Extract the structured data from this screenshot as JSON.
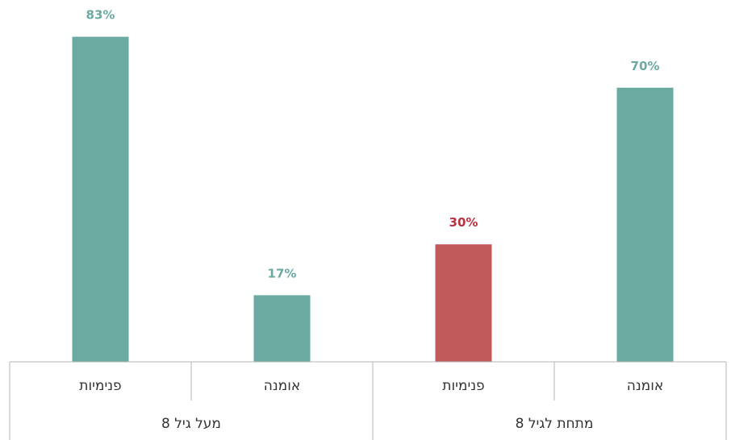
{
  "chart_data": {
    "type": "bar",
    "title": "",
    "xlabel": "",
    "ylabel": "",
    "ylim": [
      0,
      100
    ],
    "value_suffix": "%",
    "categories": [
      "אומנה",
      "פנימיות",
      "אומנה",
      "פנימיות"
    ],
    "groups": [
      {
        "label": "מתחת לגיל 8",
        "categories": [
          "אומנה",
          "פנימיות"
        ]
      },
      {
        "label": "מעל גיל 8",
        "categories": [
          "אומנה",
          "פנימיות"
        ]
      }
    ],
    "values": [
      70,
      30,
      17,
      83
    ],
    "bar_colors": [
      "#6aaaa0",
      "#c15a5b",
      "#6aaaa0",
      "#6aaaa0"
    ],
    "label_colors": [
      "#6aaaa0",
      "#b8323f",
      "#6aaaa0",
      "#6aaaa0"
    ],
    "axis_color": "#b5b5b5",
    "text_color": "#333333"
  }
}
